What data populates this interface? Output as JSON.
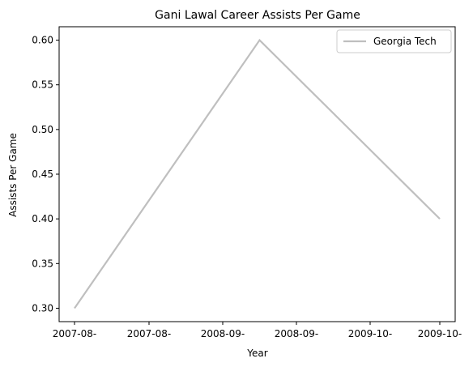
{
  "chart_data": {
    "type": "line",
    "title": "Gani Lawal Career Assists Per Game",
    "xlabel": "Year",
    "ylabel": "Assists Per Game",
    "x_tick_labels": [
      "2007-08-",
      "2007-08-",
      "2008-09-",
      "2008-09-",
      "2009-10-",
      "2009-10-"
    ],
    "x": [
      "2007-08",
      "2008-09",
      "2009-10"
    ],
    "series": [
      {
        "name": "Georgia Tech",
        "values": [
          0.3,
          0.6,
          0.4
        ],
        "color": "#bfbfbf"
      }
    ],
    "yticks": [
      0.3,
      0.35,
      0.4,
      0.45,
      0.5,
      0.55,
      0.6
    ],
    "ylim": [
      0.285,
      0.615
    ],
    "grid": false,
    "legend_position": "top-right"
  }
}
